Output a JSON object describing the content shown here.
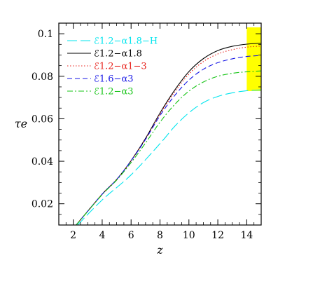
{
  "chart_data": {
    "type": "line",
    "title": "",
    "xlabel": "z",
    "ylabel": "τe",
    "xlim": [
      1,
      15
    ],
    "ylim": [
      0.01,
      0.105
    ],
    "x_ticks": [
      2,
      4,
      6,
      8,
      10,
      12,
      14
    ],
    "y_ticks": [
      0.02,
      0.04,
      0.06,
      0.08,
      0.1
    ],
    "x_tick_labels": [
      "2",
      "4",
      "6",
      "8",
      "10",
      "12",
      "14"
    ],
    "y_tick_labels": [
      "0.02",
      "0.04",
      "0.06",
      "0.08",
      "0.1"
    ],
    "grid": false,
    "legend_position": "top-left",
    "band": {
      "x": [
        14,
        15
      ],
      "y": [
        0.073,
        0.103
      ],
      "color": "#ffff00"
    },
    "series": [
      {
        "name": "ℰ1.2−α1.8−H",
        "color": "#00e5ee",
        "dash": "long-dash",
        "x": [
          2.3,
          4,
          6,
          8,
          9,
          10,
          11,
          12,
          13,
          14,
          15
        ],
        "y": [
          0.01,
          0.0218,
          0.0336,
          0.0483,
          0.0563,
          0.0628,
          0.0676,
          0.0705,
          0.0722,
          0.0732,
          0.0736
        ]
      },
      {
        "name": "ℰ1.2−α1.8",
        "color": "#000000",
        "dash": "solid",
        "x": [
          2.2,
          4,
          5,
          6,
          7,
          8,
          9,
          10,
          11,
          12,
          13,
          14,
          15
        ],
        "y": [
          0.01,
          0.0245,
          0.0314,
          0.0403,
          0.0508,
          0.0627,
          0.0733,
          0.0822,
          0.0883,
          0.0921,
          0.0941,
          0.0951,
          0.0956
        ]
      },
      {
        "name": "ℰ1.2−α1−3",
        "color": "#e8221c",
        "dash": "dotted",
        "x": [
          2.2,
          4,
          5,
          6,
          7,
          8,
          9,
          10,
          11,
          12,
          13,
          14,
          15
        ],
        "y": [
          0.01,
          0.0245,
          0.0314,
          0.0402,
          0.0505,
          0.0622,
          0.0725,
          0.081,
          0.0869,
          0.0905,
          0.0925,
          0.0937,
          0.0942
        ]
      },
      {
        "name": "ℰ1.6−α3",
        "color": "#1414e6",
        "dash": "dashed",
        "x": [
          2.2,
          4,
          5,
          6,
          7,
          8,
          9,
          10,
          11,
          12,
          13,
          14,
          15
        ],
        "y": [
          0.01,
          0.0245,
          0.0314,
          0.0402,
          0.0503,
          0.0615,
          0.0708,
          0.0782,
          0.0833,
          0.0864,
          0.0882,
          0.0893,
          0.0898
        ]
      },
      {
        "name": "ℰ1.2−α3",
        "color": "#16c416",
        "dash": "dash-dot",
        "x": [
          2.2,
          4,
          5,
          6,
          7,
          8,
          9,
          10,
          11,
          12,
          13,
          14,
          15
        ],
        "y": [
          0.01,
          0.0243,
          0.0311,
          0.0394,
          0.0486,
          0.0584,
          0.0666,
          0.073,
          0.0773,
          0.08,
          0.0814,
          0.0821,
          0.0825
        ]
      }
    ]
  }
}
